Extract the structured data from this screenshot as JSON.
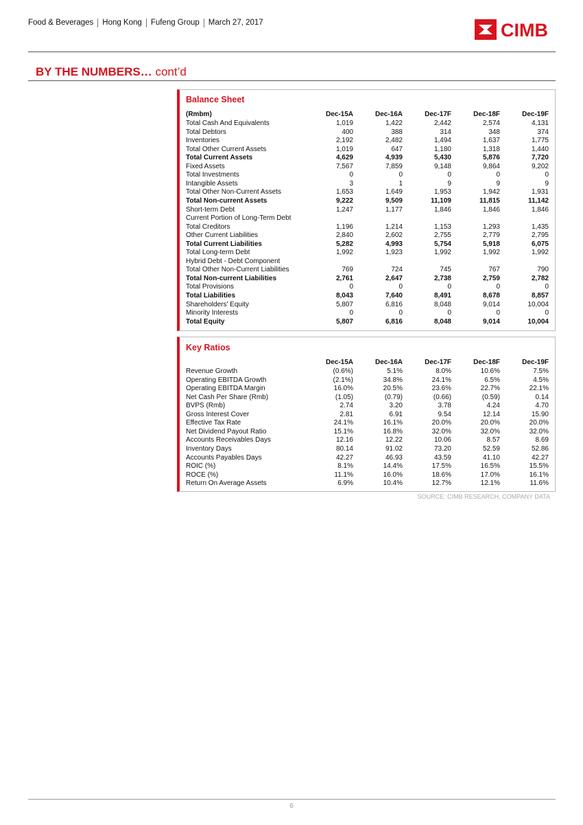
{
  "header": {
    "parts": [
      "Food & Beverages",
      "Hong Kong",
      "Fufeng Group",
      "March 27, 2017"
    ],
    "logo": "CIMB"
  },
  "section_title": {
    "main": "BY THE NUMBERS…",
    "suffix": "cont’d"
  },
  "balance_sheet": {
    "title": "Balance Sheet",
    "unit": "(Rmbm)",
    "columns": [
      "Dec-15A",
      "Dec-16A",
      "Dec-17F",
      "Dec-18F",
      "Dec-19F"
    ],
    "rows": [
      {
        "label": "Total Cash And Equivalents",
        "values": [
          "1,019",
          "1,422",
          "2,442",
          "2,574",
          "4,131"
        ]
      },
      {
        "label": "Total Debtors",
        "values": [
          "400",
          "388",
          "314",
          "348",
          "374"
        ]
      },
      {
        "label": "Inventories",
        "values": [
          "2,192",
          "2,482",
          "1,494",
          "1,637",
          "1,775"
        ]
      },
      {
        "label": "Total Other Current Assets",
        "values": [
          "1,019",
          "647",
          "1,180",
          "1,318",
          "1,440"
        ]
      },
      {
        "label": "Total Current Assets",
        "bold": true,
        "values": [
          "4,629",
          "4,939",
          "5,430",
          "5,876",
          "7,720"
        ]
      },
      {
        "label": "Fixed Assets",
        "values": [
          "7,567",
          "7,859",
          "9,148",
          "9,864",
          "9,202"
        ]
      },
      {
        "label": "Total Investments",
        "values": [
          "0",
          "0",
          "0",
          "0",
          "0"
        ]
      },
      {
        "label": "Intangible Assets",
        "values": [
          "3",
          "1",
          "9",
          "9",
          "9"
        ]
      },
      {
        "label": "Total Other Non-Current Assets",
        "values": [
          "1,653",
          "1,649",
          "1,953",
          "1,942",
          "1,931"
        ]
      },
      {
        "label": "Total Non-current Assets",
        "bold": true,
        "values": [
          "9,222",
          "9,509",
          "11,109",
          "11,815",
          "11,142"
        ]
      },
      {
        "label": "Short-term Debt",
        "values": [
          "1,247",
          "1,177",
          "1,846",
          "1,846",
          "1,846"
        ]
      },
      {
        "label": "Current Portion of Long-Term Debt"
      },
      {
        "label": "Total Creditors",
        "values": [
          "1,196",
          "1,214",
          "1,153",
          "1,293",
          "1,435"
        ]
      },
      {
        "label": "Other Current Liabilities",
        "values": [
          "2,840",
          "2,602",
          "2,755",
          "2,779",
          "2,795"
        ]
      },
      {
        "label": "Total Current Liabilities",
        "bold": true,
        "values": [
          "5,282",
          "4,993",
          "5,754",
          "5,918",
          "6,075"
        ]
      },
      {
        "label": "Total Long-term Debt",
        "values": [
          "1,992",
          "1,923",
          "1,992",
          "1,992",
          "1,992"
        ]
      },
      {
        "label": "Hybrid Debt - Debt Component"
      },
      {
        "label": "Total Other Non-Current Liabilities",
        "values": [
          "769",
          "724",
          "745",
          "767",
          "790"
        ]
      },
      {
        "label": "Total Non-current Liabilities",
        "bold": true,
        "values": [
          "2,761",
          "2,647",
          "2,738",
          "2,759",
          "2,782"
        ]
      },
      {
        "label": "Total Provisions",
        "values": [
          "0",
          "0",
          "0",
          "0",
          "0"
        ]
      },
      {
        "label": "Total Liabilities",
        "bold": true,
        "values": [
          "8,043",
          "7,640",
          "8,491",
          "8,678",
          "8,857"
        ]
      },
      {
        "label": "Shareholders' Equity",
        "values": [
          "5,807",
          "6,816",
          "8,048",
          "9,014",
          "10,004"
        ]
      },
      {
        "label": "Minority Interests",
        "values": [
          "0",
          "0",
          "0",
          "0",
          "0"
        ]
      },
      {
        "label": "Total Equity",
        "bold": true,
        "values": [
          "5,807",
          "6,816",
          "8,048",
          "9,014",
          "10,004"
        ]
      }
    ]
  },
  "key_ratios": {
    "title": "Key Ratios",
    "columns": [
      "Dec-15A",
      "Dec-16A",
      "Dec-17F",
      "Dec-18F",
      "Dec-19F"
    ],
    "rows": [
      {
        "label": "Revenue Growth",
        "values": [
          "(0.6%)",
          "5.1%",
          "8.0%",
          "10.6%",
          "7.5%"
        ]
      },
      {
        "label": "Operating EBITDA Growth",
        "values": [
          "(2.1%)",
          "34.8%",
          "24.1%",
          "6.5%",
          "4.5%"
        ]
      },
      {
        "label": "Operating EBITDA Margin",
        "values": [
          "16.0%",
          "20.5%",
          "23.6%",
          "22.7%",
          "22.1%"
        ]
      },
      {
        "label": "Net Cash Per Share (Rmb)",
        "values": [
          "(1.05)",
          "(0.79)",
          "(0.66)",
          "(0.59)",
          "0.14"
        ]
      },
      {
        "label": "BVPS (Rmb)",
        "values": [
          "2.74",
          "3.20",
          "3.78",
          "4.24",
          "4.70"
        ]
      },
      {
        "label": "Gross Interest Cover",
        "values": [
          "2.81",
          "6.91",
          "9.54",
          "12.14",
          "15.90"
        ]
      },
      {
        "label": "Effective Tax Rate",
        "values": [
          "24.1%",
          "16.1%",
          "20.0%",
          "20.0%",
          "20.0%"
        ]
      },
      {
        "label": "Net Dividend Payout Ratio",
        "values": [
          "15.1%",
          "16.8%",
          "32.0%",
          "32.0%",
          "32.0%"
        ]
      },
      {
        "label": "Accounts Receivables Days",
        "values": [
          "12.16",
          "12.22",
          "10.06",
          "8.57",
          "8.69"
        ]
      },
      {
        "label": "Inventory Days",
        "values": [
          "80.14",
          "91.02",
          "73.20",
          "52.59",
          "52.86"
        ]
      },
      {
        "label": "Accounts Payables Days",
        "values": [
          "42.27",
          "46.93",
          "43.59",
          "41.10",
          "42.27"
        ]
      },
      {
        "label": "ROIC (%)",
        "values": [
          "8.1%",
          "14.4%",
          "17.5%",
          "16.5%",
          "15.5%"
        ]
      },
      {
        "label": "ROCE (%)",
        "values": [
          "11.1%",
          "16.0%",
          "18.6%",
          "17.0%",
          "16.1%"
        ]
      },
      {
        "label": "Return On Average Assets",
        "values": [
          "6.9%",
          "10.4%",
          "12.7%",
          "12.1%",
          "11.6%"
        ]
      }
    ]
  },
  "source": "SOURCE: CIMB RESEARCH, COMPANY DATA",
  "page_number": "6"
}
